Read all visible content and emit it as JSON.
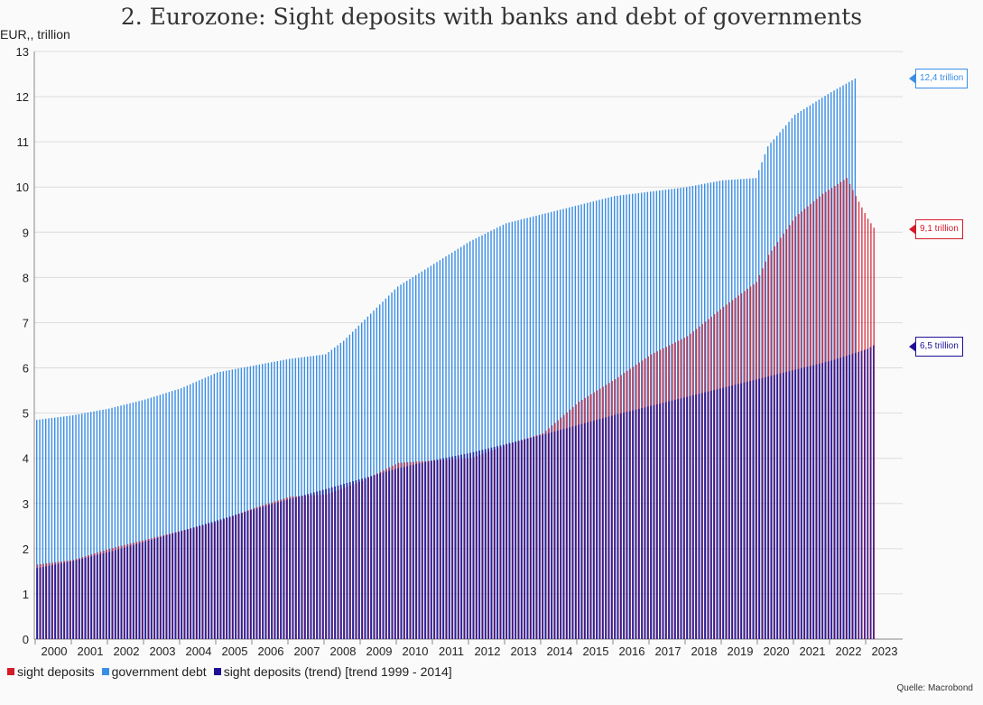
{
  "title": "2. Eurozone: Sight deposits with banks and debt of governments",
  "ylabel": "EUR,, trillion",
  "source": "Quelle: Macrobond",
  "legend": [
    {
      "label": "sight deposits",
      "color": "#d51a2a"
    },
    {
      "label": "government debt",
      "color": "#3a8ee6"
    },
    {
      "label": "sight deposits (trend) [trend 1999 - 2014]",
      "color": "#1e1196"
    }
  ],
  "callouts": {
    "debt": "12,4 trillion",
    "deposits": "9,1 trillion",
    "trend": "6,5 trillion"
  },
  "chart_data": {
    "type": "bar",
    "x_start": "2000-01",
    "x_end": "2023-03",
    "frequency": "monthly",
    "ylim": [
      0,
      13
    ],
    "yticks": [
      0,
      1,
      2,
      3,
      4,
      5,
      6,
      7,
      8,
      9,
      10,
      11,
      12,
      13
    ],
    "xticks": [
      "2000",
      "2001",
      "2002",
      "2003",
      "2004",
      "2005",
      "2006",
      "2007",
      "2008",
      "2009",
      "2010",
      "2011",
      "2012",
      "2013",
      "2014",
      "2015",
      "2016",
      "2017",
      "2018",
      "2019",
      "2020",
      "2021",
      "2022",
      "2023"
    ],
    "grid": true,
    "series": [
      {
        "name": "government debt",
        "color": "#3a8ee6",
        "anchors": [
          [
            "2000-01",
            4.85
          ],
          [
            "2001-01",
            4.95
          ],
          [
            "2002-01",
            5.1
          ],
          [
            "2003-01",
            5.3
          ],
          [
            "2004-01",
            5.55
          ],
          [
            "2005-01",
            5.9
          ],
          [
            "2006-01",
            6.05
          ],
          [
            "2007-01",
            6.2
          ],
          [
            "2008-01",
            6.3
          ],
          [
            "2008-07",
            6.6
          ],
          [
            "2009-01",
            7.0
          ],
          [
            "2009-07",
            7.4
          ],
          [
            "2010-01",
            7.8
          ],
          [
            "2011-01",
            8.3
          ],
          [
            "2012-01",
            8.8
          ],
          [
            "2013-01",
            9.2
          ],
          [
            "2014-01",
            9.4
          ],
          [
            "2015-01",
            9.6
          ],
          [
            "2016-01",
            9.8
          ],
          [
            "2017-01",
            9.9
          ],
          [
            "2018-01",
            10.0
          ],
          [
            "2019-01",
            10.15
          ],
          [
            "2019-12",
            10.2
          ],
          [
            "2020-04",
            10.9
          ],
          [
            "2021-01",
            11.6
          ],
          [
            "2022-01",
            12.1
          ],
          [
            "2022-09",
            12.4
          ]
        ]
      },
      {
        "name": "sight deposits",
        "color": "#d51a2a",
        "anchors": [
          [
            "2000-01",
            1.65
          ],
          [
            "2001-01",
            1.75
          ],
          [
            "2002-01",
            2.0
          ],
          [
            "2003-01",
            2.2
          ],
          [
            "2004-01",
            2.4
          ],
          [
            "2005-01",
            2.6
          ],
          [
            "2006-01",
            2.9
          ],
          [
            "2007-01",
            3.15
          ],
          [
            "2008-01",
            3.2
          ],
          [
            "2009-01",
            3.5
          ],
          [
            "2010-01",
            3.9
          ],
          [
            "2011-01",
            3.95
          ],
          [
            "2012-01",
            4.0
          ],
          [
            "2013-01",
            4.3
          ],
          [
            "2014-01",
            4.55
          ],
          [
            "2015-01",
            5.25
          ],
          [
            "2016-01",
            5.75
          ],
          [
            "2017-01",
            6.3
          ],
          [
            "2018-01",
            6.7
          ],
          [
            "2019-01",
            7.35
          ],
          [
            "2019-12",
            7.9
          ],
          [
            "2020-04",
            8.5
          ],
          [
            "2021-01",
            9.35
          ],
          [
            "2021-10",
            9.85
          ],
          [
            "2022-06",
            10.2
          ],
          [
            "2022-09",
            9.8
          ],
          [
            "2023-01",
            9.3
          ],
          [
            "2023-03",
            9.1
          ]
        ]
      },
      {
        "name": "sight deposits (trend) [trend 1999 - 2014]",
        "color": "#1e1196",
        "anchors": [
          [
            "2000-01",
            1.57
          ],
          [
            "2001-01",
            1.73
          ],
          [
            "2002-01",
            1.93
          ],
          [
            "2003-01",
            2.16
          ],
          [
            "2004-01",
            2.39
          ],
          [
            "2005-01",
            2.63
          ],
          [
            "2006-01",
            2.87
          ],
          [
            "2007-01",
            3.1
          ],
          [
            "2008-01",
            3.32
          ],
          [
            "2009-01",
            3.55
          ],
          [
            "2010-01",
            3.78
          ],
          [
            "2011-01",
            3.96
          ],
          [
            "2012-01",
            4.12
          ],
          [
            "2013-01",
            4.32
          ],
          [
            "2014-01",
            4.52
          ],
          [
            "2015-01",
            4.74
          ],
          [
            "2016-01",
            4.96
          ],
          [
            "2017-01",
            5.16
          ],
          [
            "2018-01",
            5.36
          ],
          [
            "2019-01",
            5.56
          ],
          [
            "2020-01",
            5.76
          ],
          [
            "2021-01",
            5.96
          ],
          [
            "2022-01",
            6.16
          ],
          [
            "2023-01",
            6.42
          ],
          [
            "2023-03",
            6.5
          ]
        ]
      }
    ]
  }
}
